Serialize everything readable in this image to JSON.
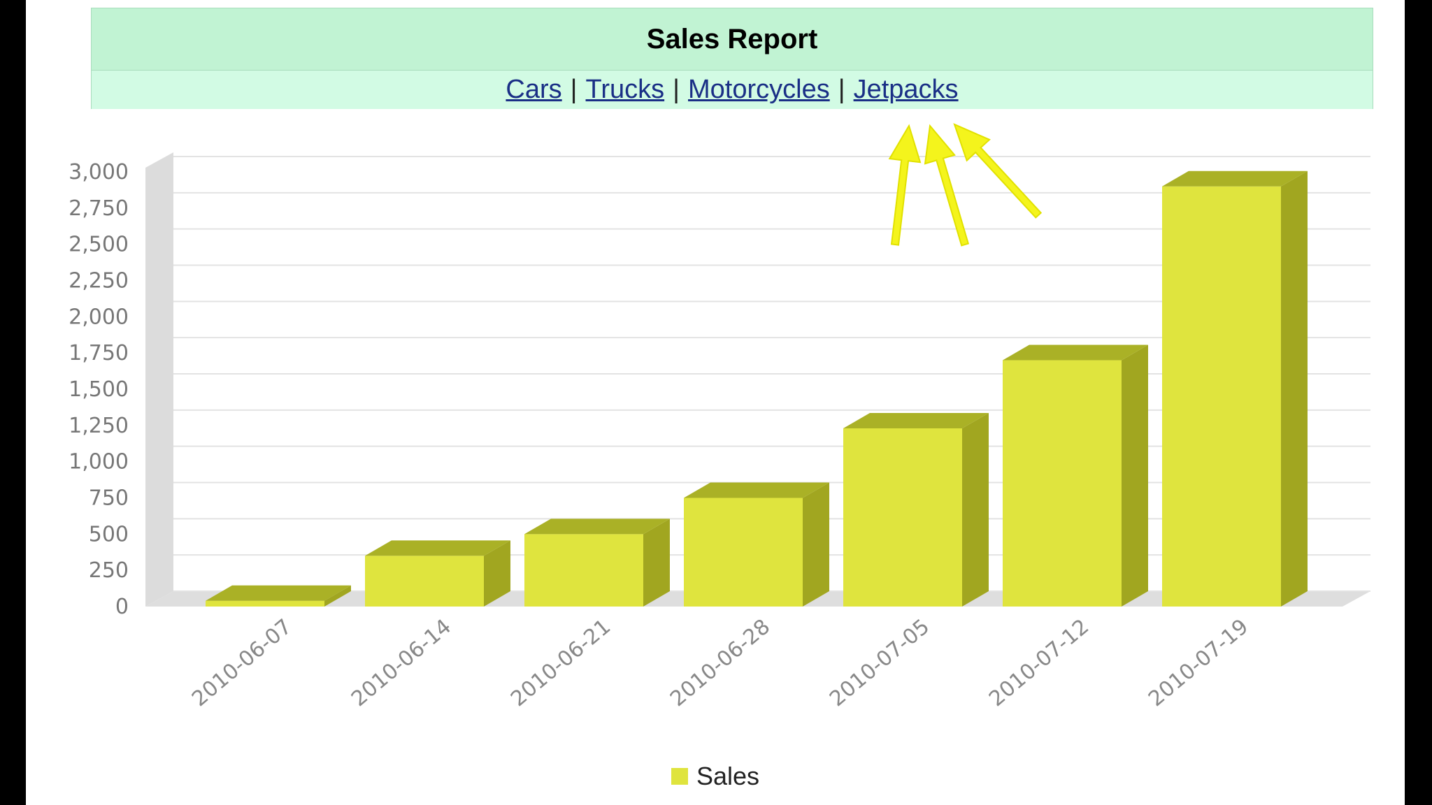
{
  "header": {
    "title": "Sales Report",
    "nav": [
      {
        "label": "Cars"
      },
      {
        "label": "Trucks"
      },
      {
        "label": "Motorcycles"
      },
      {
        "label": "Jetpacks"
      }
    ],
    "separator": "|"
  },
  "colors": {
    "header_title_bg": "#c1f3d3",
    "header_nav_bg": "#d2fbe4",
    "link": "#1a2f86",
    "bar_front": "#dfe43e",
    "bar_side": "#a1a620",
    "bar_top": "#aab126",
    "arrow": "#f4f41c"
  },
  "annotation": {
    "type": "arrows",
    "count": 3,
    "color": "#f4f41c"
  },
  "chart_data": {
    "type": "bar",
    "categories": [
      "2010-06-07",
      "2010-06-14",
      "2010-06-21",
      "2010-06-28",
      "2010-07-05",
      "2010-07-12",
      "2010-07-19"
    ],
    "series": [
      {
        "name": "Sales",
        "values": [
          40,
          350,
          500,
          750,
          1230,
          1700,
          2900
        ]
      }
    ],
    "yticks": [
      "0",
      "250",
      "500",
      "750",
      "1,000",
      "1,250",
      "1,500",
      "1,750",
      "2,000",
      "2,250",
      "2,500",
      "2,750",
      "3,000"
    ],
    "ylim": [
      0,
      3000
    ],
    "grid": true,
    "legend": "bottom-center",
    "style": "3d"
  }
}
